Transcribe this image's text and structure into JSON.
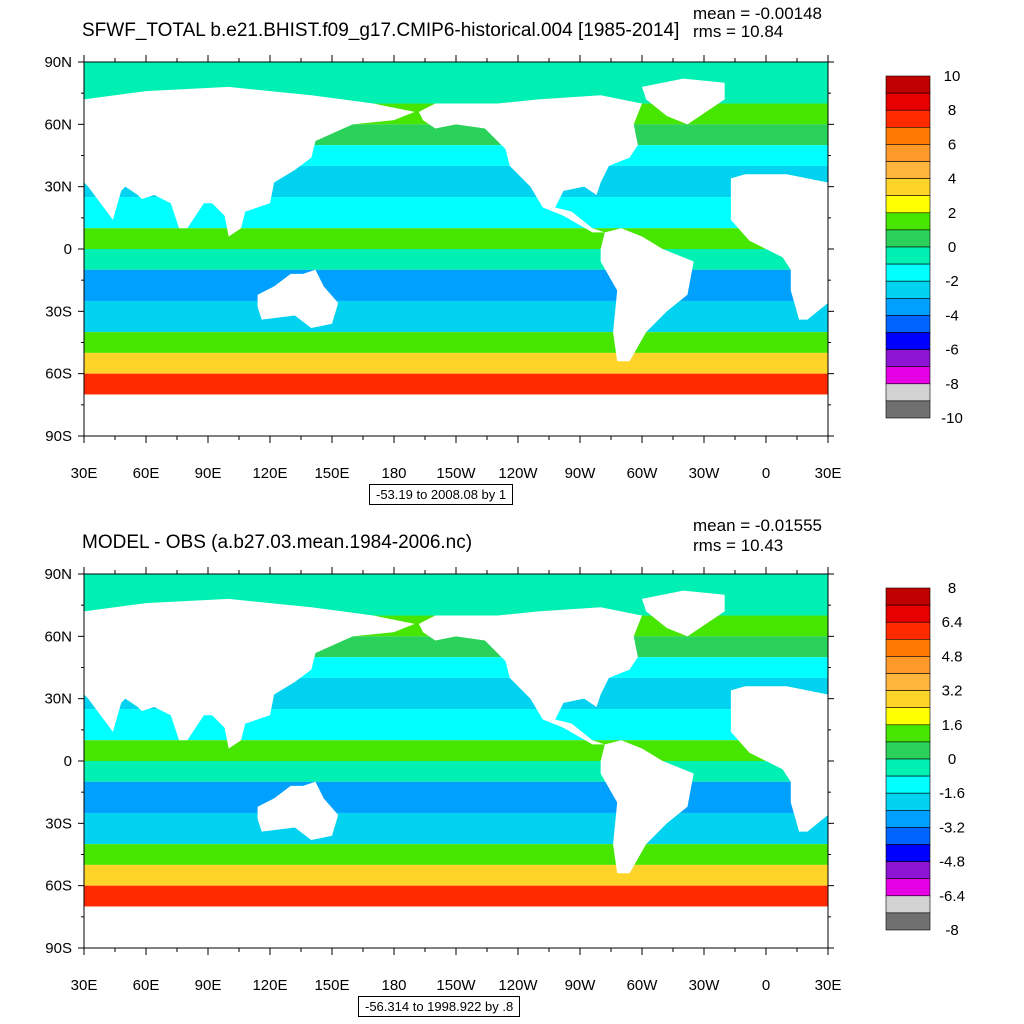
{
  "panels": [
    {
      "title": "SFWF_TOTAL b.e21.BHIST.f09_g17.CMIP6-historical.004 [1985-2014]",
      "mean_text": "mean = -0.00148",
      "rms_text": "rms = 10.84",
      "range_text": "-53.19 to 2008.08 by 1",
      "colorbar_labels": [
        "10",
        "8",
        "6",
        "4",
        "2",
        "0",
        "-2",
        "-4",
        "-6",
        "-8",
        "-10"
      ],
      "colors": [
        "#c00000",
        "#e80000",
        "#ff2a00",
        "#ff7a00",
        "#ff9a2a",
        "#ffb43c",
        "#ffd428",
        "#ffff00",
        "#46e600",
        "#2ad25a",
        "#00f0b4",
        "#00ffff",
        "#00d2f0",
        "#00a0ff",
        "#0064ff",
        "#0000ff",
        "#8c14d2",
        "#e600e6",
        "#d2d2d2",
        "#707070"
      ]
    },
    {
      "title": "MODEL - OBS (a.b27.03.mean.1984-2006.nc)",
      "mean_text": "mean = -0.01555",
      "rms_text": "rms = 10.43",
      "range_text": "-56.314 to 1998.922 by .8",
      "colorbar_labels": [
        "8",
        "6.4",
        "4.8",
        "3.2",
        "1.6",
        "0",
        "-1.6",
        "-3.2",
        "-4.8",
        "-6.4",
        "-8"
      ],
      "colors": [
        "#c00000",
        "#e80000",
        "#ff2a00",
        "#ff7a00",
        "#ff9a2a",
        "#ffb43c",
        "#ffd428",
        "#ffff00",
        "#46e600",
        "#2ad25a",
        "#00f0b4",
        "#00ffff",
        "#00d2f0",
        "#00a0ff",
        "#0064ff",
        "#0000ff",
        "#8c14d2",
        "#e600e6",
        "#d2d2d2",
        "#707070"
      ]
    }
  ],
  "lat_labels": [
    "90N",
    "60N",
    "30N",
    "0",
    "30S",
    "60S",
    "90S"
  ],
  "lon_labels": [
    "30E",
    "60E",
    "90E",
    "120E",
    "150E",
    "180",
    "150W",
    "120W",
    "90W",
    "60W",
    "30W",
    "0",
    "30E"
  ]
}
